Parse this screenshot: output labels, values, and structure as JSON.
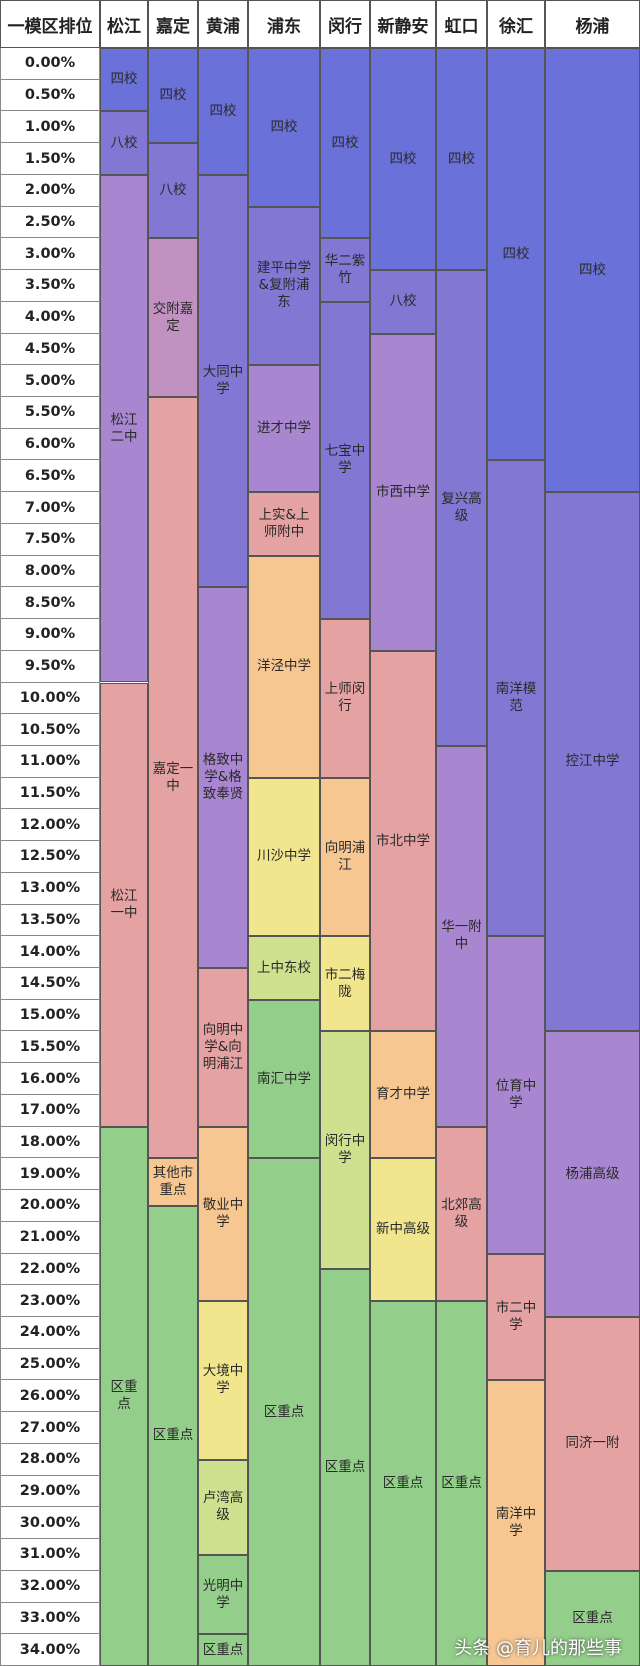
{
  "header": {
    "rank_label": "一模区排位"
  },
  "rank_rows": [
    "0.00%",
    "0.50%",
    "1.00%",
    "1.50%",
    "2.00%",
    "2.50%",
    "3.00%",
    "3.50%",
    "4.00%",
    "4.50%",
    "5.00%",
    "5.50%",
    "6.00%",
    "6.50%",
    "7.00%",
    "7.50%",
    "8.00%",
    "8.50%",
    "9.00%",
    "9.50%",
    "10.00%",
    "10.50%",
    "11.00%",
    "11.50%",
    "12.00%",
    "12.50%",
    "13.00%",
    "13.50%",
    "14.00%",
    "14.50%",
    "15.00%",
    "15.50%",
    "16.00%",
    "17.00%",
    "18.00%",
    "19.00%",
    "20.00%",
    "21.00%",
    "22.00%",
    "23.00%",
    "24.00%",
    "25.00%",
    "26.00%",
    "27.00%",
    "28.00%",
    "29.00%",
    "30.00%",
    "31.00%",
    "32.00%",
    "33.00%",
    "34.00%"
  ],
  "colors": {
    "blue": "#6a71d8",
    "indigo": "#8277d3",
    "purple": "#a987d0",
    "mauve": "#c192c1",
    "pink": "#e4a2a2",
    "orange": "#f7c792",
    "yellow": "#f1e68d",
    "ylgreen": "#cfe08f",
    "green": "#93cf8a"
  },
  "chart_data": {
    "type": "table",
    "columns": [
      {
        "name": "松江",
        "blocks": [
          {
            "label": "四校",
            "start": 0,
            "end": 2,
            "color": "blue"
          },
          {
            "label": "八校",
            "start": 2,
            "end": 4,
            "color": "indigo"
          },
          {
            "label": "松江二中",
            "start": 4,
            "end": 20,
            "color": "purple"
          },
          {
            "label": "松江一中",
            "start": 20,
            "end": 34,
            "color": "pink"
          },
          {
            "label": "区重点",
            "start": 34,
            "end": 51,
            "color": "green"
          }
        ]
      },
      {
        "name": "嘉定",
        "blocks": [
          {
            "label": "四校",
            "start": 0,
            "end": 3,
            "color": "blue"
          },
          {
            "label": "八校",
            "start": 3,
            "end": 6,
            "color": "indigo"
          },
          {
            "label": "交附嘉定",
            "start": 6,
            "end": 11,
            "color": "mauve"
          },
          {
            "label": "嘉定一中",
            "start": 11,
            "end": 35,
            "color": "pink"
          },
          {
            "label": "其他市重点",
            "start": 35,
            "end": 36.5,
            "color": "orange"
          },
          {
            "label": "区重点",
            "start": 36.5,
            "end": 51,
            "color": "green"
          }
        ]
      },
      {
        "name": "黄浦",
        "blocks": [
          {
            "label": "四校",
            "start": 0,
            "end": 4,
            "color": "blue"
          },
          {
            "label": "大同中学",
            "start": 4,
            "end": 17,
            "color": "indigo"
          },
          {
            "label": "格致中学&格致奉贤",
            "start": 17,
            "end": 29,
            "color": "purple"
          },
          {
            "label": "向明中学&向明浦江",
            "start": 29,
            "end": 34,
            "color": "pink"
          },
          {
            "label": "敬业中学",
            "start": 34,
            "end": 39.5,
            "color": "orange"
          },
          {
            "label": "大境中学",
            "start": 39.5,
            "end": 44.5,
            "color": "yellow"
          },
          {
            "label": "卢湾高级",
            "start": 44.5,
            "end": 47.5,
            "color": "ylgreen"
          },
          {
            "label": "光明中学",
            "start": 47.5,
            "end": 50,
            "color": "green"
          },
          {
            "label": "区重点",
            "start": 50,
            "end": 51,
            "color": "green"
          }
        ]
      },
      {
        "name": "浦东",
        "blocks": [
          {
            "label": "四校",
            "start": 0,
            "end": 5,
            "color": "blue"
          },
          {
            "label": "建平中学&复附浦东",
            "start": 5,
            "end": 10,
            "color": "indigo"
          },
          {
            "label": "进才中学",
            "start": 10,
            "end": 14,
            "color": "purple"
          },
          {
            "label": "上实&上师附中",
            "start": 14,
            "end": 16,
            "color": "pink"
          },
          {
            "label": "洋泾中学",
            "start": 16,
            "end": 23,
            "color": "orange"
          },
          {
            "label": "川沙中学",
            "start": 23,
            "end": 28,
            "color": "yellow"
          },
          {
            "label": "上中东校",
            "start": 28,
            "end": 30,
            "color": "ylgreen"
          },
          {
            "label": "南汇中学",
            "start": 30,
            "end": 35,
            "color": "green"
          },
          {
            "label": "区重点",
            "start": 35,
            "end": 51,
            "color": "green"
          }
        ]
      },
      {
        "name": "闵行",
        "blocks": [
          {
            "label": "四校",
            "start": 0,
            "end": 6,
            "color": "blue"
          },
          {
            "label": "华二紫竹",
            "start": 6,
            "end": 8,
            "color": "indigo"
          },
          {
            "label": "七宝中学",
            "start": 8,
            "end": 18,
            "color": "indigo"
          },
          {
            "label": "上师闵行",
            "start": 18,
            "end": 23,
            "color": "pink"
          },
          {
            "label": "向明浦江",
            "start": 23,
            "end": 28,
            "color": "orange"
          },
          {
            "label": "市二梅陇",
            "start": 28,
            "end": 31,
            "color": "yellow"
          },
          {
            "label": "闵行中学",
            "start": 31,
            "end": 38.5,
            "color": "ylgreen"
          },
          {
            "label": "区重点",
            "start": 38.5,
            "end": 51,
            "color": "green"
          }
        ]
      },
      {
        "name": "新静安",
        "blocks": [
          {
            "label": "四校",
            "start": 0,
            "end": 7,
            "color": "blue"
          },
          {
            "label": "八校",
            "start": 7,
            "end": 9,
            "color": "indigo"
          },
          {
            "label": "市西中学",
            "start": 9,
            "end": 19,
            "color": "purple"
          },
          {
            "label": "市北中学",
            "start": 19,
            "end": 31,
            "color": "pink"
          },
          {
            "label": "育才中学",
            "start": 31,
            "end": 35,
            "color": "orange"
          },
          {
            "label": "新中高级",
            "start": 35,
            "end": 39.5,
            "color": "yellow"
          },
          {
            "label": "区重点",
            "start": 39.5,
            "end": 51,
            "color": "green"
          }
        ]
      },
      {
        "name": "虹口",
        "blocks": [
          {
            "label": "四校",
            "start": 0,
            "end": 7,
            "color": "blue"
          },
          {
            "label": "复兴高级",
            "start": 7,
            "end": 22,
            "color": "indigo"
          },
          {
            "label": "华一附中",
            "start": 22,
            "end": 34,
            "color": "purple"
          },
          {
            "label": "北郊高级",
            "start": 34,
            "end": 39.5,
            "color": "pink"
          },
          {
            "label": "区重点",
            "start": 39.5,
            "end": 51,
            "color": "green"
          }
        ]
      },
      {
        "name": "徐汇",
        "blocks": [
          {
            "label": "四校",
            "start": 0,
            "end": 13,
            "color": "blue"
          },
          {
            "label": "南洋模范",
            "start": 13,
            "end": 28,
            "color": "indigo"
          },
          {
            "label": "位育中学",
            "start": 28,
            "end": 38,
            "color": "purple"
          },
          {
            "label": "市二中学",
            "start": 38,
            "end": 42,
            "color": "pink"
          },
          {
            "label": "南洋中学",
            "start": 42,
            "end": 51,
            "color": "orange"
          }
        ]
      },
      {
        "name": "杨浦",
        "blocks": [
          {
            "label": "四校",
            "start": 0,
            "end": 14,
            "color": "blue"
          },
          {
            "label": "控江中学",
            "start": 14,
            "end": 31,
            "color": "indigo"
          },
          {
            "label": "杨浦高级",
            "start": 31,
            "end": 40,
            "color": "purple"
          },
          {
            "label": "同济一附",
            "start": 40,
            "end": 48,
            "color": "pink"
          },
          {
            "label": "区重点",
            "start": 48,
            "end": 51,
            "color": "green"
          }
        ]
      }
    ]
  },
  "watermark": "头条 @育儿的那些事"
}
